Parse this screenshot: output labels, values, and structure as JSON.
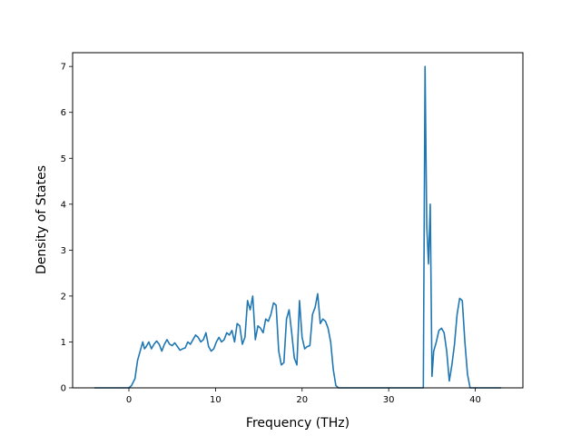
{
  "chart_data": {
    "type": "line",
    "title": "",
    "xlabel": "Frequency (THz)",
    "ylabel": "Density of States",
    "xlim": [
      -6.5,
      45.5
    ],
    "ylim": [
      0,
      7.3
    ],
    "xticks": [
      0,
      10,
      20,
      30,
      40
    ],
    "yticks": [
      0,
      1,
      2,
      3,
      4,
      5,
      6,
      7
    ],
    "xtick_labels": [
      "0",
      "10",
      "20",
      "30",
      "40"
    ],
    "ytick_labels": [
      "0",
      "1",
      "2",
      "3",
      "4",
      "5",
      "6",
      "7"
    ],
    "grid": false,
    "legend": "none",
    "line_color": "#1f77b4",
    "series": [
      {
        "x": [
          -4,
          0,
          0.3,
          0.7,
          1.0,
          1.3,
          1.6,
          1.8,
          2.0,
          2.3,
          2.6,
          2.9,
          3.2,
          3.5,
          3.8,
          4.1,
          4.4,
          4.7,
          5.0,
          5.3,
          5.6,
          5.9,
          6.2,
          6.5,
          6.8,
          7.1,
          7.4,
          7.7,
          8.0,
          8.3,
          8.6,
          8.9,
          9.2,
          9.5,
          9.8,
          10.1,
          10.4,
          10.7,
          11.0,
          11.3,
          11.6,
          11.9,
          12.2,
          12.5,
          12.8,
          13.1,
          13.4,
          13.7,
          14.0,
          14.3,
          14.6,
          14.9,
          15.2,
          15.5,
          15.8,
          16.1,
          16.4,
          16.7,
          17.0,
          17.3,
          17.6,
          17.9,
          18.2,
          18.5,
          18.8,
          19.1,
          19.4,
          19.7,
          20.0,
          20.3,
          20.6,
          20.9,
          21.2,
          21.5,
          21.8,
          22.1,
          22.4,
          22.7,
          23.0,
          23.3,
          23.6,
          23.9,
          24.2,
          24.5,
          24.8,
          25.1,
          25.4,
          25.7,
          26.0,
          26.3,
          34.0,
          34.2,
          34.4,
          34.6,
          34.8,
          35.0,
          35.2,
          35.5,
          35.8,
          36.1,
          36.4,
          36.7,
          37.0,
          37.3,
          37.6,
          37.9,
          38.2,
          38.5,
          38.8,
          39.1,
          39.4,
          39.7,
          43
        ],
        "y": [
          0,
          0,
          0.05,
          0.2,
          0.6,
          0.8,
          1.0,
          0.85,
          0.9,
          1.0,
          0.85,
          0.95,
          1.02,
          0.95,
          0.8,
          0.95,
          1.05,
          0.95,
          0.92,
          0.98,
          0.9,
          0.82,
          0.85,
          0.87,
          1.0,
          0.95,
          1.05,
          1.15,
          1.1,
          1.0,
          1.05,
          1.2,
          0.9,
          0.8,
          0.85,
          1.0,
          1.1,
          1.0,
          1.05,
          1.2,
          1.15,
          1.25,
          1.0,
          1.4,
          1.35,
          0.95,
          1.1,
          1.9,
          1.7,
          2.0,
          1.05,
          1.35,
          1.3,
          1.2,
          1.5,
          1.45,
          1.6,
          1.85,
          1.8,
          0.8,
          0.5,
          0.55,
          1.5,
          1.7,
          1.2,
          0.65,
          0.5,
          1.9,
          1.1,
          0.85,
          0.9,
          0.92,
          1.6,
          1.75,
          2.05,
          1.4,
          1.5,
          1.45,
          1.3,
          1.0,
          0.4,
          0.05,
          0,
          0,
          0,
          0,
          0,
          0,
          0,
          0,
          0,
          7.0,
          3.5,
          2.7,
          4.0,
          0.25,
          0.8,
          1.0,
          1.25,
          1.3,
          1.2,
          0.8,
          0.15,
          0.5,
          0.95,
          1.6,
          1.95,
          1.9,
          1.0,
          0.3,
          0,
          0,
          0
        ]
      }
    ]
  }
}
